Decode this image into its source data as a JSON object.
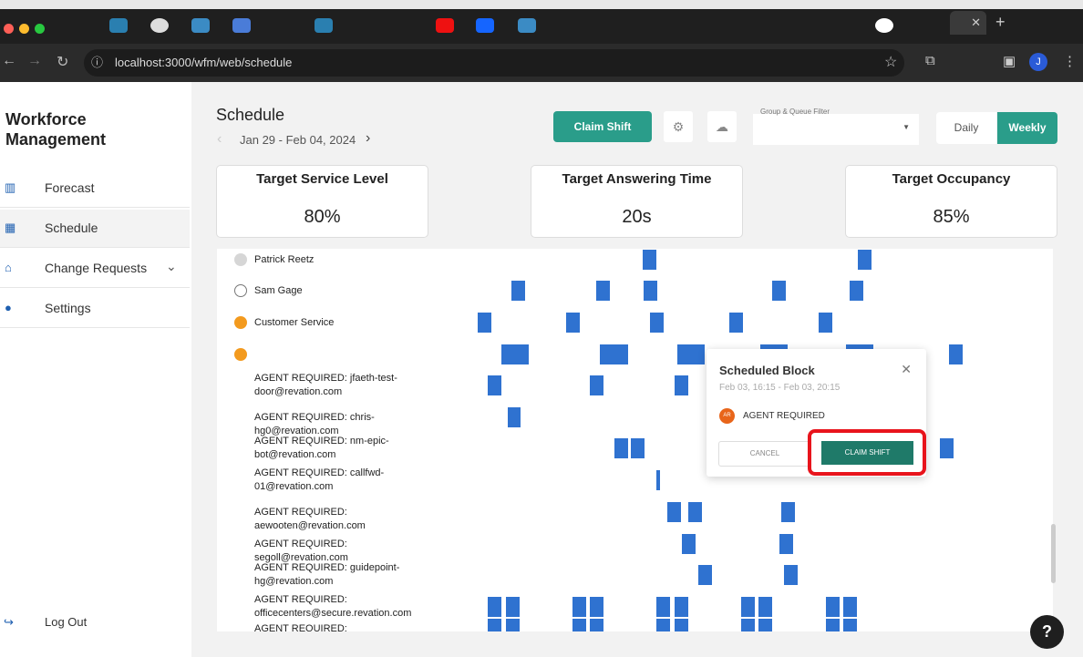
{
  "browser": {
    "url": "localhost:3000/wfm/web/schedule",
    "profile_initial": "J"
  },
  "sidebar": {
    "brand": "Workforce Management",
    "items": [
      {
        "label": "Forecast",
        "icon": "bar-chart-icon"
      },
      {
        "label": "Schedule",
        "icon": "calendar-icon"
      },
      {
        "label": "Change Requests",
        "icon": "inbox-icon"
      },
      {
        "label": "Settings",
        "icon": "person-icon"
      }
    ],
    "logout": "Log Out"
  },
  "header": {
    "title": "Schedule",
    "date_range": "Jan 29 - Feb 04, 2024",
    "claim_shift": "Claim Shift",
    "filter_label": "Group & Queue Filter",
    "filter_value": "",
    "views": [
      "Daily",
      "Weekly"
    ],
    "active_view": "Weekly"
  },
  "kpis": [
    {
      "title": "Target Service Level",
      "value": "80%"
    },
    {
      "title": "Target Answering Time",
      "value": "20s"
    },
    {
      "title": "Target Occupancy",
      "value": "85%"
    }
  ],
  "rows": [
    {
      "label": "Patrick Reetz",
      "status": "grey"
    },
    {
      "label": "Sam Gage",
      "status": "empty"
    },
    {
      "label": "Customer Service",
      "status": "orange"
    },
    {
      "label": "",
      "status": "orange"
    },
    {
      "label": "AGENT REQUIRED: jfaeth-test-door@revation.com"
    },
    {
      "label": "AGENT REQUIRED: chris-hg0@revation.com"
    },
    {
      "label": "AGENT REQUIRED: nm-epic-bot@revation.com"
    },
    {
      "label": "AGENT REQUIRED: callfwd-01@revation.com"
    },
    {
      "label": "AGENT REQUIRED: aewooten@revation.com"
    },
    {
      "label": "AGENT REQUIRED: segoll@revation.com"
    },
    {
      "label": "AGENT REQUIRED: guidepoint-hg@revation.com"
    },
    {
      "label": "AGENT REQUIRED: officecenters@secure.revation.com"
    },
    {
      "label": "AGENT REQUIRED:"
    }
  ],
  "popup": {
    "title": "Scheduled Block",
    "time": "Feb 03, 16:15 - Feb 03, 20:15",
    "avatar": "AR",
    "agent": "AGENT REQUIRED",
    "cancel": "CANCEL",
    "claim": "CLAIM SHIFT"
  },
  "colors": {
    "accent": "#2a9d8a",
    "block": "#2f72d0",
    "highlight": "#e8141c",
    "orange": "#f39a1e"
  },
  "help": "?"
}
